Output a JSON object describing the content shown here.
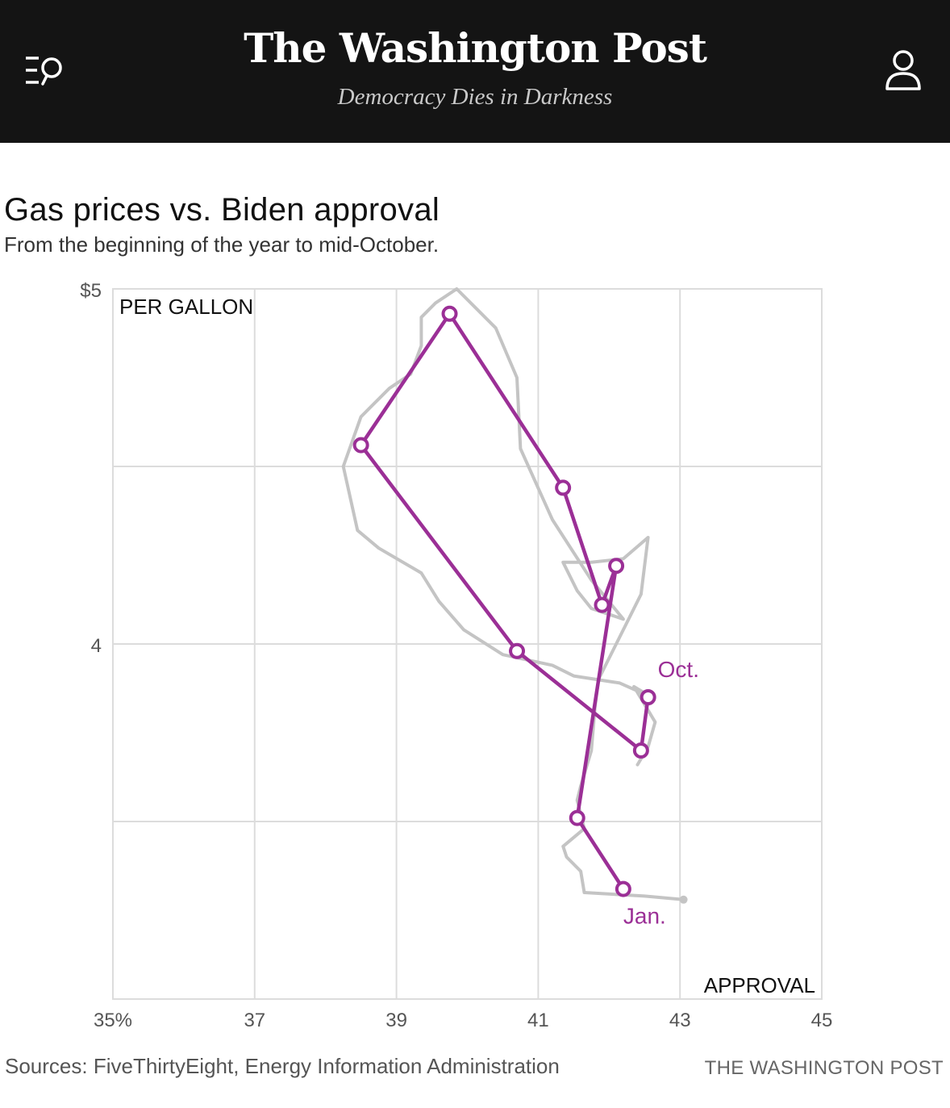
{
  "header": {
    "logo": "The Washington Post",
    "tagline": "Democracy Dies in Darkness",
    "menu_icon": "menu-search-icon",
    "account_icon": "user-icon"
  },
  "colors": {
    "header_bg": "#141414",
    "series": "#9b2f96",
    "trail": "#c4c4c4",
    "grid": "#dcdcdc"
  },
  "chart_data": {
    "type": "scatter",
    "title": "Gas prices vs. Biden approval",
    "subtitle": "From the beginning of the year to mid-October.",
    "xlabel": "APPROVAL",
    "ylabel": "PER GALLON",
    "xlim": [
      35,
      45
    ],
    "ylim": [
      3.0,
      5.0
    ],
    "x_ticks": [
      {
        "value": 35,
        "label": "35%"
      },
      {
        "value": 37,
        "label": "37"
      },
      {
        "value": 39,
        "label": "39"
      },
      {
        "value": 41,
        "label": "41"
      },
      {
        "value": 43,
        "label": "43"
      },
      {
        "value": 45,
        "label": "45"
      }
    ],
    "y_ticks": [
      {
        "value": 5,
        "label": "$5"
      },
      {
        "value": 4,
        "label": "4"
      }
    ],
    "y_gridlines": [
      5.0,
      4.5,
      4.0,
      3.5
    ],
    "grid": true,
    "series": [
      {
        "color": "#9b2f96",
        "points": [
          {
            "x": 42.2,
            "y": 3.31
          },
          {
            "x": 41.55,
            "y": 3.51
          },
          {
            "x": 42.1,
            "y": 4.22
          },
          {
            "x": 41.9,
            "y": 4.11
          },
          {
            "x": 41.35,
            "y": 4.44
          },
          {
            "x": 39.75,
            "y": 4.93
          },
          {
            "x": 38.5,
            "y": 4.56
          },
          {
            "x": 40.7,
            "y": 3.98
          },
          {
            "x": 42.45,
            "y": 3.7
          },
          {
            "x": 42.55,
            "y": 3.85
          }
        ]
      },
      {
        "color": "#c4c4c4",
        "points": [
          {
            "x": 43.05,
            "y": 3.28
          },
          {
            "x": 42.5,
            "y": 3.29
          },
          {
            "x": 41.65,
            "y": 3.3
          },
          {
            "x": 41.6,
            "y": 3.36
          },
          {
            "x": 41.4,
            "y": 3.4
          },
          {
            "x": 41.35,
            "y": 3.43
          },
          {
            "x": 41.65,
            "y": 3.48
          },
          {
            "x": 41.55,
            "y": 3.56
          },
          {
            "x": 41.6,
            "y": 3.6
          },
          {
            "x": 41.75,
            "y": 3.7
          },
          {
            "x": 41.8,
            "y": 3.82
          },
          {
            "x": 41.85,
            "y": 3.9
          },
          {
            "x": 42.1,
            "y": 4.0
          },
          {
            "x": 42.45,
            "y": 4.14
          },
          {
            "x": 42.55,
            "y": 4.3
          },
          {
            "x": 42.2,
            "y": 4.24
          },
          {
            "x": 41.75,
            "y": 4.23
          },
          {
            "x": 41.35,
            "y": 4.23
          },
          {
            "x": 41.55,
            "y": 4.15
          },
          {
            "x": 41.75,
            "y": 4.1
          },
          {
            "x": 42.2,
            "y": 4.07
          },
          {
            "x": 41.75,
            "y": 4.18
          },
          {
            "x": 41.2,
            "y": 4.35
          },
          {
            "x": 40.75,
            "y": 4.55
          },
          {
            "x": 40.7,
            "y": 4.75
          },
          {
            "x": 40.4,
            "y": 4.89
          },
          {
            "x": 39.85,
            "y": 5.0
          },
          {
            "x": 39.55,
            "y": 4.96
          },
          {
            "x": 39.35,
            "y": 4.92
          },
          {
            "x": 39.35,
            "y": 4.84
          },
          {
            "x": 39.2,
            "y": 4.76
          },
          {
            "x": 38.9,
            "y": 4.72
          },
          {
            "x": 38.5,
            "y": 4.64
          },
          {
            "x": 38.25,
            "y": 4.5
          },
          {
            "x": 38.45,
            "y": 4.32
          },
          {
            "x": 38.75,
            "y": 4.27
          },
          {
            "x": 39.35,
            "y": 4.2
          },
          {
            "x": 39.6,
            "y": 4.12
          },
          {
            "x": 39.95,
            "y": 4.04
          },
          {
            "x": 40.5,
            "y": 3.97
          },
          {
            "x": 41.2,
            "y": 3.94
          },
          {
            "x": 41.5,
            "y": 3.91
          },
          {
            "x": 42.15,
            "y": 3.89
          },
          {
            "x": 42.6,
            "y": 3.85
          },
          {
            "x": 42.35,
            "y": 3.88
          },
          {
            "x": 42.65,
            "y": 3.78
          },
          {
            "x": 42.55,
            "y": 3.71
          },
          {
            "x": 42.4,
            "y": 3.66
          }
        ]
      }
    ],
    "annotations": [
      {
        "text": "Oct.",
        "x": 42.55,
        "y": 3.85
      },
      {
        "text": "Jan.",
        "x": 42.2,
        "y": 3.31
      }
    ]
  },
  "footer": {
    "sources": "Sources: FiveThirtyEight, Energy Information Administration",
    "credit": "THE WASHINGTON POST"
  }
}
